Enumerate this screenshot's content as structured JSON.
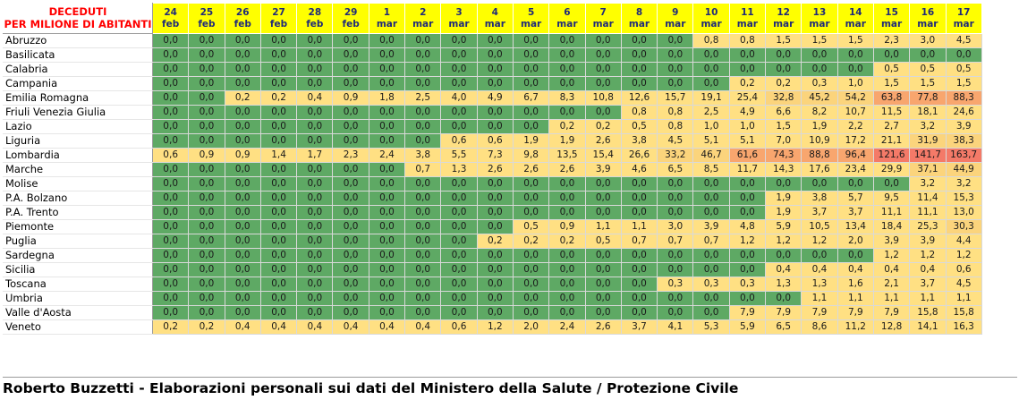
{
  "header": {
    "corner_line1": "DECEDUTI",
    "corner_line2": "PER MILIONE DI ABITANTI",
    "dates": [
      {
        "day": "24",
        "month": "feb"
      },
      {
        "day": "25",
        "month": "feb"
      },
      {
        "day": "26",
        "month": "feb"
      },
      {
        "day": "27",
        "month": "feb"
      },
      {
        "day": "28",
        "month": "feb"
      },
      {
        "day": "29",
        "month": "feb"
      },
      {
        "day": "1",
        "month": "mar"
      },
      {
        "day": "2",
        "month": "mar"
      },
      {
        "day": "3",
        "month": "mar"
      },
      {
        "day": "4",
        "month": "mar"
      },
      {
        "day": "5",
        "month": "mar"
      },
      {
        "day": "6",
        "month": "mar"
      },
      {
        "day": "7",
        "month": "mar"
      },
      {
        "day": "8",
        "month": "mar"
      },
      {
        "day": "9",
        "month": "mar"
      },
      {
        "day": "10",
        "month": "mar"
      },
      {
        "day": "11",
        "month": "mar"
      },
      {
        "day": "12",
        "month": "mar"
      },
      {
        "day": "13",
        "month": "mar"
      },
      {
        "day": "14",
        "month": "mar"
      },
      {
        "day": "15",
        "month": "mar"
      },
      {
        "day": "16",
        "month": "mar"
      },
      {
        "day": "17",
        "month": "mar"
      }
    ]
  },
  "colors": {
    "zero": "#5ea964",
    "low": "#ffe083",
    "mid": "#fbd47c",
    "high": "#f8a66e",
    "top": "#f47a68"
  },
  "rows": [
    {
      "region": "Abruzzo",
      "values": [
        "0,0",
        "0,0",
        "0,0",
        "0,0",
        "0,0",
        "0,0",
        "0,0",
        "0,0",
        "0,0",
        "0,0",
        "0,0",
        "0,0",
        "0,0",
        "0,0",
        "0,0",
        "0,8",
        "0,8",
        "1,5",
        "1,5",
        "1,5",
        "2,3",
        "3,0",
        "4,5"
      ]
    },
    {
      "region": "Basilicata",
      "values": [
        "0,0",
        "0,0",
        "0,0",
        "0,0",
        "0,0",
        "0,0",
        "0,0",
        "0,0",
        "0,0",
        "0,0",
        "0,0",
        "0,0",
        "0,0",
        "0,0",
        "0,0",
        "0,0",
        "0,0",
        "0,0",
        "0,0",
        "0,0",
        "0,0",
        "0,0",
        "0,0"
      ]
    },
    {
      "region": "Calabria",
      "values": [
        "0,0",
        "0,0",
        "0,0",
        "0,0",
        "0,0",
        "0,0",
        "0,0",
        "0,0",
        "0,0",
        "0,0",
        "0,0",
        "0,0",
        "0,0",
        "0,0",
        "0,0",
        "0,0",
        "0,0",
        "0,0",
        "0,0",
        "0,0",
        "0,5",
        "0,5",
        "0,5"
      ]
    },
    {
      "region": "Campania",
      "values": [
        "0,0",
        "0,0",
        "0,0",
        "0,0",
        "0,0",
        "0,0",
        "0,0",
        "0,0",
        "0,0",
        "0,0",
        "0,0",
        "0,0",
        "0,0",
        "0,0",
        "0,0",
        "0,0",
        "0,2",
        "0,2",
        "0,3",
        "1,0",
        "1,5",
        "1,5",
        "1,5"
      ]
    },
    {
      "region": "Emilia Romagna",
      "values": [
        "0,0",
        "0,0",
        "0,2",
        "0,2",
        "0,4",
        "0,9",
        "1,8",
        "2,5",
        "4,0",
        "4,9",
        "6,7",
        "8,3",
        "10,8",
        "12,6",
        "15,7",
        "19,1",
        "25,4",
        "32,8",
        "45,2",
        "54,2",
        "63,8",
        "77,8",
        "88,3"
      ]
    },
    {
      "region": "Friuli Venezia Giulia",
      "values": [
        "0,0",
        "0,0",
        "0,0",
        "0,0",
        "0,0",
        "0,0",
        "0,0",
        "0,0",
        "0,0",
        "0,0",
        "0,0",
        "0,0",
        "0,0",
        "0,8",
        "0,8",
        "2,5",
        "4,9",
        "6,6",
        "8,2",
        "10,7",
        "11,5",
        "18,1",
        "24,6"
      ]
    },
    {
      "region": "Lazio",
      "values": [
        "0,0",
        "0,0",
        "0,0",
        "0,0",
        "0,0",
        "0,0",
        "0,0",
        "0,0",
        "0,0",
        "0,0",
        "0,0",
        "0,2",
        "0,2",
        "0,5",
        "0,8",
        "1,0",
        "1,0",
        "1,5",
        "1,9",
        "2,2",
        "2,7",
        "3,2",
        "3,9"
      ]
    },
    {
      "region": "Liguria",
      "values": [
        "0,0",
        "0,0",
        "0,0",
        "0,0",
        "0,0",
        "0,0",
        "0,0",
        "0,0",
        "0,6",
        "0,6",
        "1,9",
        "1,9",
        "2,6",
        "3,8",
        "4,5",
        "5,1",
        "5,1",
        "7,0",
        "10,9",
        "17,2",
        "21,1",
        "31,9",
        "38,3"
      ]
    },
    {
      "region": "Lombardia",
      "values": [
        "0,6",
        "0,9",
        "0,9",
        "1,4",
        "1,7",
        "2,3",
        "2,4",
        "3,8",
        "5,5",
        "7,3",
        "9,8",
        "13,5",
        "15,4",
        "26,6",
        "33,2",
        "46,7",
        "61,6",
        "74,3",
        "88,8",
        "96,4",
        "121,6",
        "141,7",
        "163,7"
      ]
    },
    {
      "region": "Marche",
      "values": [
        "0,0",
        "0,0",
        "0,0",
        "0,0",
        "0,0",
        "0,0",
        "0,0",
        "0,7",
        "1,3",
        "2,6",
        "2,6",
        "2,6",
        "3,9",
        "4,6",
        "6,5",
        "8,5",
        "11,7",
        "14,3",
        "17,6",
        "23,4",
        "29,9",
        "37,1",
        "44,9"
      ]
    },
    {
      "region": "Molise",
      "values": [
        "0,0",
        "0,0",
        "0,0",
        "0,0",
        "0,0",
        "0,0",
        "0,0",
        "0,0",
        "0,0",
        "0,0",
        "0,0",
        "0,0",
        "0,0",
        "0,0",
        "0,0",
        "0,0",
        "0,0",
        "0,0",
        "0,0",
        "0,0",
        "0,0",
        "3,2",
        "3,2"
      ]
    },
    {
      "region": "P.A. Bolzano",
      "values": [
        "0,0",
        "0,0",
        "0,0",
        "0,0",
        "0,0",
        "0,0",
        "0,0",
        "0,0",
        "0,0",
        "0,0",
        "0,0",
        "0,0",
        "0,0",
        "0,0",
        "0,0",
        "0,0",
        "0,0",
        "1,9",
        "3,8",
        "5,7",
        "9,5",
        "11,4",
        "15,3"
      ]
    },
    {
      "region": "P.A. Trento",
      "values": [
        "0,0",
        "0,0",
        "0,0",
        "0,0",
        "0,0",
        "0,0",
        "0,0",
        "0,0",
        "0,0",
        "0,0",
        "0,0",
        "0,0",
        "0,0",
        "0,0",
        "0,0",
        "0,0",
        "0,0",
        "1,9",
        "3,7",
        "3,7",
        "11,1",
        "11,1",
        "13,0"
      ]
    },
    {
      "region": "Piemonte",
      "values": [
        "0,0",
        "0,0",
        "0,0",
        "0,0",
        "0,0",
        "0,0",
        "0,0",
        "0,0",
        "0,0",
        "0,0",
        "0,5",
        "0,9",
        "1,1",
        "1,1",
        "3,0",
        "3,9",
        "4,8",
        "5,9",
        "10,5",
        "13,4",
        "18,4",
        "25,3",
        "30,3"
      ]
    },
    {
      "region": "Puglia",
      "values": [
        "0,0",
        "0,0",
        "0,0",
        "0,0",
        "0,0",
        "0,0",
        "0,0",
        "0,0",
        "0,0",
        "0,2",
        "0,2",
        "0,2",
        "0,5",
        "0,7",
        "0,7",
        "0,7",
        "1,2",
        "1,2",
        "1,2",
        "2,0",
        "3,9",
        "3,9",
        "4,4"
      ]
    },
    {
      "region": "Sardegna",
      "values": [
        "0,0",
        "0,0",
        "0,0",
        "0,0",
        "0,0",
        "0,0",
        "0,0",
        "0,0",
        "0,0",
        "0,0",
        "0,0",
        "0,0",
        "0,0",
        "0,0",
        "0,0",
        "0,0",
        "0,0",
        "0,0",
        "0,0",
        "0,0",
        "1,2",
        "1,2",
        "1,2"
      ]
    },
    {
      "region": "Sicilia",
      "values": [
        "0,0",
        "0,0",
        "0,0",
        "0,0",
        "0,0",
        "0,0",
        "0,0",
        "0,0",
        "0,0",
        "0,0",
        "0,0",
        "0,0",
        "0,0",
        "0,0",
        "0,0",
        "0,0",
        "0,0",
        "0,4",
        "0,4",
        "0,4",
        "0,4",
        "0,4",
        "0,6"
      ]
    },
    {
      "region": "Toscana",
      "values": [
        "0,0",
        "0,0",
        "0,0",
        "0,0",
        "0,0",
        "0,0",
        "0,0",
        "0,0",
        "0,0",
        "0,0",
        "0,0",
        "0,0",
        "0,0",
        "0,0",
        "0,3",
        "0,3",
        "0,3",
        "1,3",
        "1,3",
        "1,6",
        "2,1",
        "3,7",
        "4,5"
      ]
    },
    {
      "region": "Umbria",
      "values": [
        "0,0",
        "0,0",
        "0,0",
        "0,0",
        "0,0",
        "0,0",
        "0,0",
        "0,0",
        "0,0",
        "0,0",
        "0,0",
        "0,0",
        "0,0",
        "0,0",
        "0,0",
        "0,0",
        "0,0",
        "0,0",
        "1,1",
        "1,1",
        "1,1",
        "1,1",
        "1,1"
      ]
    },
    {
      "region": "Valle d'Aosta",
      "values": [
        "0,0",
        "0,0",
        "0,0",
        "0,0",
        "0,0",
        "0,0",
        "0,0",
        "0,0",
        "0,0",
        "0,0",
        "0,0",
        "0,0",
        "0,0",
        "0,0",
        "0,0",
        "0,0",
        "7,9",
        "7,9",
        "7,9",
        "7,9",
        "7,9",
        "15,8",
        "15,8"
      ]
    },
    {
      "region": "Veneto",
      "values": [
        "0,2",
        "0,2",
        "0,4",
        "0,4",
        "0,4",
        "0,4",
        "0,4",
        "0,4",
        "0,6",
        "1,2",
        "2,0",
        "2,4",
        "2,6",
        "3,7",
        "4,1",
        "5,3",
        "5,9",
        "6,5",
        "8,6",
        "11,2",
        "12,8",
        "14,1",
        "16,3"
      ]
    }
  ],
  "footer": {
    "credit": "Roberto Buzzetti - Elaborazioni personali sui dati del Ministero della Salute / Protezione Civile"
  }
}
